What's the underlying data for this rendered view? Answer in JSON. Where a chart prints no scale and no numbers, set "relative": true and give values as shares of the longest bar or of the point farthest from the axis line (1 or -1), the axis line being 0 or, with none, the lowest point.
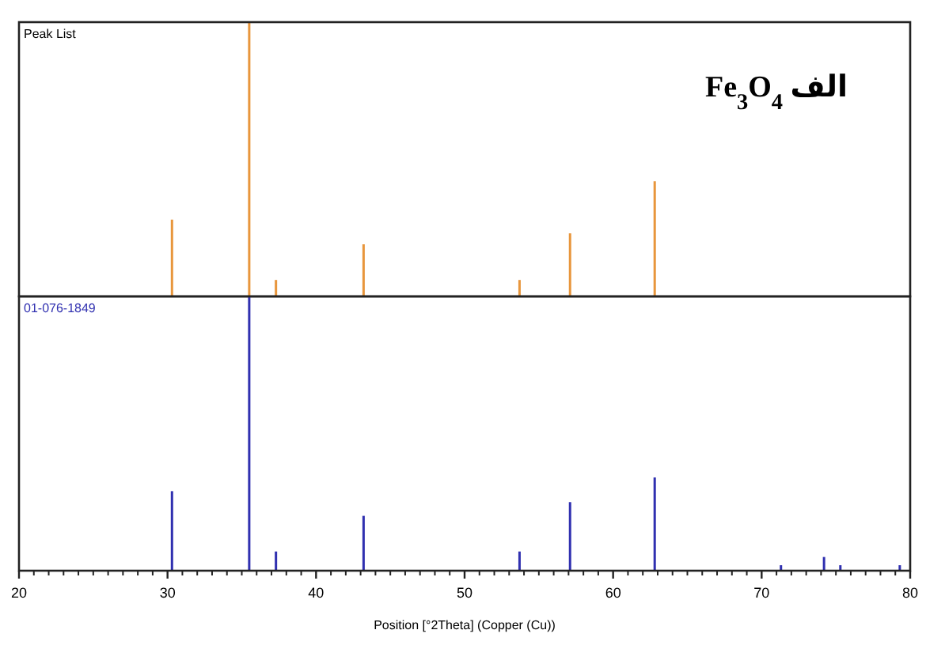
{
  "chart_data": [
    {
      "type": "bar",
      "title": "Fe$_{3}$O$_{4}$ الف",
      "relative": true,
      "tick_labels": false,
      "xlim": [
        20,
        80
      ],
      "x": [
        30.3,
        35.5,
        37.3,
        43.2,
        53.7,
        57.1,
        62.8
      ],
      "series": [
        {
          "name": "Peak List",
          "color": "#e8963c",
          "values": [
            0.28,
            1,
            0.06,
            0.19,
            0.06,
            0.23,
            0.42
          ]
        }
      ]
    },
    {
      "type": "bar",
      "xlabel": "Position [°2Theta] (Copper (Cu))",
      "relative": true,
      "tick_labels": "x",
      "xlim": [
        20,
        80
      ],
      "xticks": [
        20,
        30,
        40,
        50,
        60,
        70,
        80
      ],
      "x": [
        30.3,
        35.5,
        37.3,
        43.2,
        53.7,
        57.1,
        62.8,
        71.3,
        74.2,
        75.3,
        79.3
      ],
      "series": [
        {
          "name": "01-076-1849",
          "color": "#3030b0",
          "values": [
            0.29,
            1,
            0.07,
            0.2,
            0.07,
            0.25,
            0.34,
            0.02,
            0.05,
            0.02,
            0.02
          ]
        }
      ]
    }
  ]
}
